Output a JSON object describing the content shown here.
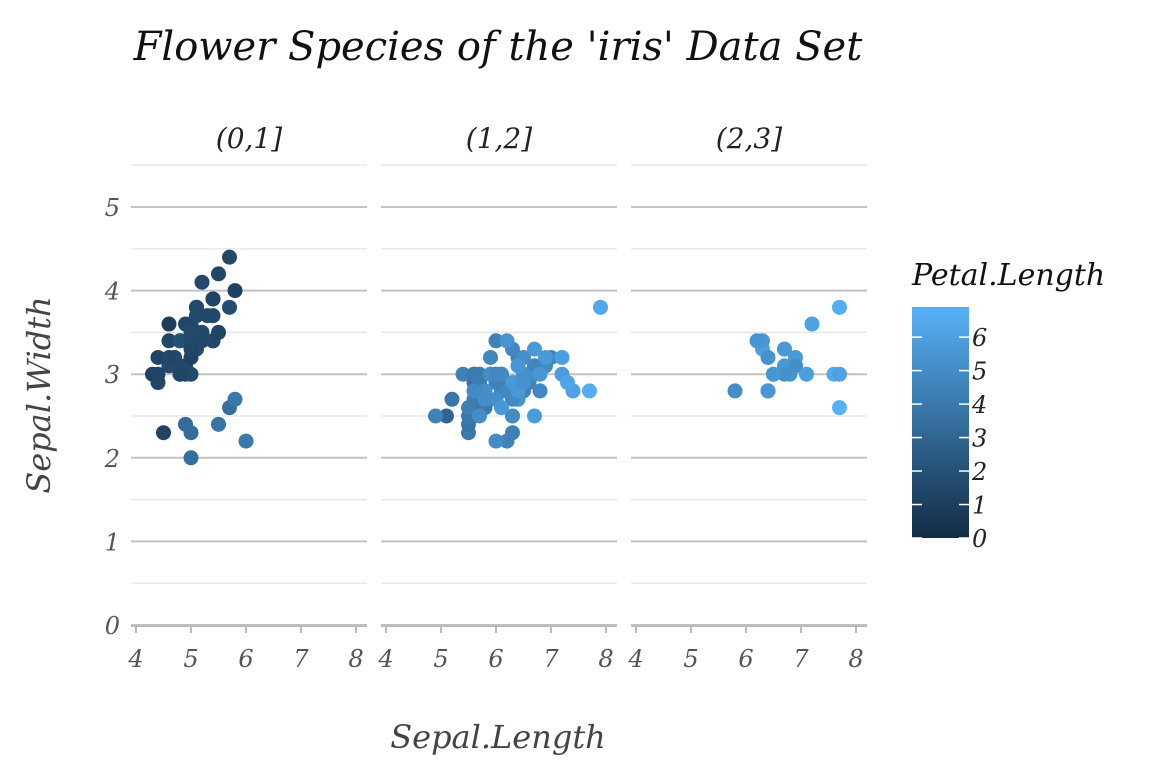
{
  "chart_data": {
    "type": "scatter",
    "title": "Flower Species of the 'iris' Data Set",
    "xlabel": "Sepal.Length",
    "ylabel": "Sepal.Width",
    "xlim": [
      4,
      8
    ],
    "ylim": [
      0,
      5
    ],
    "x_ticks": [
      "4",
      "5",
      "6",
      "7",
      "8"
    ],
    "y_ticks": [
      "0",
      "1",
      "2",
      "3",
      "4",
      "5"
    ],
    "grid": true,
    "legend": {
      "title": "Petal.Length",
      "position": "right",
      "ticks": [
        "0",
        "1",
        "2",
        "3",
        "4",
        "5",
        "6"
      ],
      "range": [
        0,
        6.9
      ],
      "color_low": "#132b43",
      "color_high": "#56b1f7"
    },
    "facets": [
      {
        "label": "(0,1]",
        "points": [
          [
            5.1,
            3.5,
            1.4
          ],
          [
            4.9,
            3.0,
            1.4
          ],
          [
            4.7,
            3.2,
            1.3
          ],
          [
            4.6,
            3.1,
            1.5
          ],
          [
            5.0,
            3.6,
            1.4
          ],
          [
            5.4,
            3.9,
            1.7
          ],
          [
            4.6,
            3.4,
            1.4
          ],
          [
            5.0,
            3.4,
            1.5
          ],
          [
            4.4,
            2.9,
            1.4
          ],
          [
            4.9,
            3.1,
            1.5
          ],
          [
            5.4,
            3.7,
            1.5
          ],
          [
            4.8,
            3.4,
            1.6
          ],
          [
            4.8,
            3.0,
            1.4
          ],
          [
            4.3,
            3.0,
            1.1
          ],
          [
            5.8,
            4.0,
            1.2
          ],
          [
            5.7,
            4.4,
            1.5
          ],
          [
            5.4,
            3.9,
            1.3
          ],
          [
            5.1,
            3.5,
            1.4
          ],
          [
            5.7,
            3.8,
            1.7
          ],
          [
            5.1,
            3.8,
            1.5
          ],
          [
            5.4,
            3.4,
            1.7
          ],
          [
            5.1,
            3.7,
            1.5
          ],
          [
            4.6,
            3.6,
            1.0
          ],
          [
            5.1,
            3.3,
            1.7
          ],
          [
            4.8,
            3.4,
            1.9
          ],
          [
            5.0,
            3.0,
            1.6
          ],
          [
            5.0,
            3.4,
            1.6
          ],
          [
            5.2,
            3.5,
            1.5
          ],
          [
            5.2,
            3.4,
            1.4
          ],
          [
            4.7,
            3.2,
            1.6
          ],
          [
            4.8,
            3.1,
            1.6
          ],
          [
            5.4,
            3.4,
            1.5
          ],
          [
            5.2,
            4.1,
            1.5
          ],
          [
            5.5,
            4.2,
            1.4
          ],
          [
            4.9,
            3.1,
            1.5
          ],
          [
            5.0,
            3.2,
            1.2
          ],
          [
            5.5,
            3.5,
            1.3
          ],
          [
            4.9,
            3.6,
            1.4
          ],
          [
            4.4,
            3.0,
            1.3
          ],
          [
            5.1,
            3.4,
            1.5
          ],
          [
            5.0,
            3.5,
            1.3
          ],
          [
            4.5,
            2.3,
            1.3
          ],
          [
            4.4,
            3.2,
            1.3
          ],
          [
            5.0,
            3.5,
            1.6
          ],
          [
            5.1,
            3.8,
            1.9
          ],
          [
            4.8,
            3.0,
            1.4
          ],
          [
            5.1,
            3.8,
            1.6
          ],
          [
            4.6,
            3.2,
            1.4
          ],
          [
            5.3,
            3.7,
            1.5
          ],
          [
            5.0,
            3.3,
            1.4
          ],
          [
            4.9,
            2.4,
            3.3
          ],
          [
            5.0,
            2.0,
            3.5
          ],
          [
            5.7,
            2.6,
            3.5
          ],
          [
            5.5,
            2.4,
            3.7
          ],
          [
            5.8,
            2.7,
            3.9
          ],
          [
            6.0,
            2.2,
            4.0
          ],
          [
            5.0,
            2.3,
            3.3
          ]
        ]
      },
      {
        "label": "(1,2]",
        "points": [
          [
            7.0,
            3.2,
            4.7
          ],
          [
            6.4,
            3.2,
            4.5
          ],
          [
            6.9,
            3.1,
            4.9
          ],
          [
            5.5,
            2.3,
            4.0
          ],
          [
            6.5,
            2.8,
            4.6
          ],
          [
            5.7,
            2.8,
            4.5
          ],
          [
            6.3,
            3.3,
            4.7
          ],
          [
            6.6,
            2.9,
            4.6
          ],
          [
            5.2,
            2.7,
            3.9
          ],
          [
            5.9,
            3.0,
            4.2
          ],
          [
            6.1,
            2.9,
            4.7
          ],
          [
            5.6,
            2.9,
            3.6
          ],
          [
            6.7,
            3.1,
            4.4
          ],
          [
            5.6,
            3.0,
            4.5
          ],
          [
            5.8,
            2.7,
            4.1
          ],
          [
            6.2,
            2.2,
            4.5
          ],
          [
            5.6,
            2.5,
            3.9
          ],
          [
            5.9,
            3.2,
            4.8
          ],
          [
            6.1,
            2.8,
            4.0
          ],
          [
            6.3,
            2.5,
            4.9
          ],
          [
            6.1,
            2.8,
            4.7
          ],
          [
            6.4,
            2.9,
            4.3
          ],
          [
            6.6,
            3.0,
            4.4
          ],
          [
            6.8,
            2.8,
            4.8
          ],
          [
            6.7,
            3.0,
            5.0
          ],
          [
            6.0,
            2.9,
            4.5
          ],
          [
            5.7,
            2.6,
            3.5
          ],
          [
            5.5,
            2.4,
            3.8
          ],
          [
            6.0,
            2.7,
            5.1
          ],
          [
            5.4,
            3.0,
            4.5
          ],
          [
            6.0,
            3.4,
            4.5
          ],
          [
            6.7,
            3.1,
            4.7
          ],
          [
            6.3,
            2.3,
            4.4
          ],
          [
            5.6,
            3.0,
            4.1
          ],
          [
            5.5,
            2.5,
            4.0
          ],
          [
            5.5,
            2.6,
            4.4
          ],
          [
            6.1,
            3.0,
            4.6
          ],
          [
            5.8,
            2.6,
            4.0
          ],
          [
            5.6,
            2.7,
            4.2
          ],
          [
            5.7,
            3.0,
            4.2
          ],
          [
            5.7,
            2.9,
            4.2
          ],
          [
            6.2,
            2.9,
            4.3
          ],
          [
            5.1,
            2.5,
            3.0
          ],
          [
            5.7,
            2.8,
            4.1
          ],
          [
            4.9,
            2.5,
            4.5
          ],
          [
            6.5,
            3.2,
            5.1
          ],
          [
            6.4,
            2.7,
            5.3
          ],
          [
            6.8,
            3.0,
            5.5
          ],
          [
            5.7,
            2.5,
            5.0
          ],
          [
            5.8,
            2.8,
            5.1
          ],
          [
            6.0,
            2.2,
            5.0
          ],
          [
            6.9,
            3.2,
            5.7
          ],
          [
            5.6,
            2.8,
            4.9
          ],
          [
            7.7,
            2.8,
            6.7
          ],
          [
            6.3,
            2.7,
            4.9
          ],
          [
            7.2,
            3.2,
            6.0
          ],
          [
            6.2,
            2.8,
            4.8
          ],
          [
            6.1,
            3.0,
            4.9
          ],
          [
            6.4,
            2.8,
            5.6
          ],
          [
            7.2,
            3.0,
            5.8
          ],
          [
            7.4,
            2.8,
            6.1
          ],
          [
            7.9,
            3.8,
            6.4
          ],
          [
            6.1,
            2.6,
            5.6
          ],
          [
            6.3,
            2.5,
            5.0
          ],
          [
            6.0,
            3.0,
            4.8
          ],
          [
            5.8,
            2.7,
            5.1
          ],
          [
            6.7,
            2.5,
            5.8
          ],
          [
            7.3,
            2.9,
            6.3
          ],
          [
            6.7,
            3.3,
            5.7
          ],
          [
            6.5,
            3.0,
            5.2
          ],
          [
            6.2,
            3.4,
            5.4
          ],
          [
            5.9,
            3.0,
            5.1
          ],
          [
            6.4,
            3.1,
            5.5
          ],
          [
            6.3,
            2.9,
            5.6
          ],
          [
            6.5,
            2.9,
            5.3
          ],
          [
            6.0,
            3.0,
            4.8
          ]
        ]
      },
      {
        "label": "(2,3]",
        "points": [
          [
            6.3,
            3.3,
            6.0
          ],
          [
            5.8,
            2.8,
            5.1
          ],
          [
            6.4,
            3.2,
            5.3
          ],
          [
            7.7,
            3.8,
            6.7
          ],
          [
            6.9,
            3.2,
            5.7
          ],
          [
            6.7,
            3.3,
            5.7
          ],
          [
            7.2,
            3.6,
            6.1
          ],
          [
            6.8,
            3.0,
            5.5
          ],
          [
            7.7,
            2.6,
            6.9
          ],
          [
            6.5,
            3.0,
            5.8
          ],
          [
            6.4,
            2.8,
            5.6
          ],
          [
            7.6,
            3.0,
            6.6
          ],
          [
            6.7,
            3.1,
            5.6
          ],
          [
            6.9,
            3.1,
            5.4
          ],
          [
            6.9,
            3.1,
            5.1
          ],
          [
            6.7,
            3.0,
            5.2
          ],
          [
            6.3,
            3.4,
            5.6
          ],
          [
            6.7,
            3.3,
            5.7
          ],
          [
            6.2,
            3.4,
            5.4
          ],
          [
            7.1,
            3.0,
            5.9
          ],
          [
            6.5,
            3.0,
            5.5
          ],
          [
            7.7,
            3.0,
            6.1
          ],
          [
            6.4,
            2.8,
            5.6
          ]
        ]
      }
    ]
  }
}
